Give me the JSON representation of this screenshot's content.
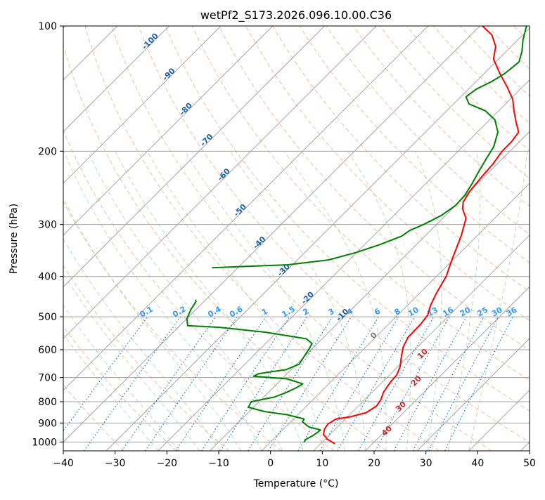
{
  "chart_data": {
    "type": "line",
    "title": "wetPf2_S173.2026.096.10.00.C36",
    "xlabel": "Temperature (°C)",
    "ylabel": "Pressure (hPa)",
    "xlim": [
      -40,
      50
    ],
    "ylim": [
      1050,
      100
    ],
    "y_scale": "log",
    "skew": "skew-T",
    "grid": true,
    "x_ticks": [
      -40,
      -30,
      -20,
      -10,
      0,
      10,
      20,
      30,
      40,
      50
    ],
    "y_ticks": [
      100,
      200,
      300,
      400,
      500,
      600,
      700,
      800,
      900,
      1000
    ],
    "x_tick_labels": [
      "−40",
      "−30",
      "−20",
      "−10",
      "0",
      "10",
      "20",
      "30",
      "40",
      "50"
    ],
    "y_tick_labels": [
      "100",
      "200",
      "300",
      "400",
      "500",
      "600",
      "700",
      "800",
      "900",
      "1000"
    ],
    "colors": {
      "temperature": "#ff0000",
      "dewpoint": "#008000",
      "isotherm": "#a0a0a0",
      "dry_adiabat": "#f4a582",
      "moist_adiabat": "#9fd39f",
      "mixing_ratio": "#1f77d4",
      "freezing_level_label": "#1a5fa8",
      "mixing_label": "#3399ff",
      "wetbulb_label": "#d62728",
      "isobar": "#a0a0a0"
    },
    "series": [
      {
        "key": "temperature",
        "points": [
          {
            "p": 1010,
            "t": 12.8
          },
          {
            "p": 985,
            "t": 10.5
          },
          {
            "p": 960,
            "t": 8.8
          },
          {
            "p": 930,
            "t": 7.9
          },
          {
            "p": 905,
            "t": 7.6
          },
          {
            "p": 880,
            "t": 8.2
          },
          {
            "p": 870,
            "t": 10.5
          },
          {
            "p": 850,
            "t": 12.8
          },
          {
            "p": 820,
            "t": 13.5
          },
          {
            "p": 790,
            "t": 13.1
          },
          {
            "p": 760,
            "t": 12.2
          },
          {
            "p": 720,
            "t": 11.6
          },
          {
            "p": 690,
            "t": 11.4
          },
          {
            "p": 660,
            "t": 10.5
          },
          {
            "p": 620,
            "t": 8.6
          },
          {
            "p": 590,
            "t": 7.2
          },
          {
            "p": 560,
            "t": 6.3
          },
          {
            "p": 520,
            "t": 6.2
          },
          {
            "p": 495,
            "t": 5.8
          },
          {
            "p": 470,
            "t": 4.5
          },
          {
            "p": 440,
            "t": 3.3
          },
          {
            "p": 400,
            "t": 1.9
          },
          {
            "p": 360,
            "t": -0.5
          },
          {
            "p": 320,
            "t": -3.0
          },
          {
            "p": 290,
            "t": -5.5
          },
          {
            "p": 275,
            "t": -8.0
          },
          {
            "p": 265,
            "t": -9.2
          },
          {
            "p": 250,
            "t": -10.0
          },
          {
            "p": 230,
            "t": -10.5
          },
          {
            "p": 215,
            "t": -10.8
          },
          {
            "p": 200,
            "t": -11.5
          },
          {
            "p": 190,
            "t": -11.5
          },
          {
            "p": 180,
            "t": -12.0
          },
          {
            "p": 170,
            "t": -14.5
          },
          {
            "p": 160,
            "t": -17.0
          },
          {
            "p": 150,
            "t": -19.5
          },
          {
            "p": 140,
            "t": -23.0
          },
          {
            "p": 130,
            "t": -27.0
          },
          {
            "p": 120,
            "t": -31.0
          },
          {
            "p": 112,
            "t": -33.0
          },
          {
            "p": 105,
            "t": -36.0
          },
          {
            "p": 100,
            "t": -39.5
          }
        ]
      },
      {
        "key": "dewpoint",
        "points": [
          {
            "p": 1000,
            "t": 6.5
          },
          {
            "p": 985,
            "t": 6.3
          },
          {
            "p": 970,
            "t": 6.8
          },
          {
            "p": 950,
            "t": 7.2
          },
          {
            "p": 935,
            "t": 7.3
          },
          {
            "p": 920,
            "t": 4.5
          },
          {
            "p": 895,
            "t": 2.3
          },
          {
            "p": 880,
            "t": 2.0
          },
          {
            "p": 860,
            "t": -2.0
          },
          {
            "p": 845,
            "t": -7.0
          },
          {
            "p": 825,
            "t": -11.0
          },
          {
            "p": 800,
            "t": -11.5
          },
          {
            "p": 780,
            "t": -8.0
          },
          {
            "p": 760,
            "t": -6.5
          },
          {
            "p": 740,
            "t": -5.5
          },
          {
            "p": 725,
            "t": -5.0
          },
          {
            "p": 705,
            "t": -9.0
          },
          {
            "p": 695,
            "t": -16.0
          },
          {
            "p": 685,
            "t": -15.5
          },
          {
            "p": 670,
            "t": -11.0
          },
          {
            "p": 650,
            "t": -9.5
          },
          {
            "p": 625,
            "t": -10.0
          },
          {
            "p": 600,
            "t": -10.5
          },
          {
            "p": 580,
            "t": -11.0
          },
          {
            "p": 565,
            "t": -13.0
          },
          {
            "p": 545,
            "t": -22.0
          },
          {
            "p": 530,
            "t": -32.0
          },
          {
            "p": 525,
            "t": -38.5
          },
          {
            "p": 505,
            "t": -40.0
          },
          {
            "p": 480,
            "t": -41.0
          },
          {
            "p": 460,
            "t": -41.5
          },
          {
            "p": 455,
            "t": -42.0
          }
        ]
      },
      {
        "key": "dewpoint_upper",
        "points": [
          {
            "p": 381,
            "t": -45.0
          },
          {
            "p": 379,
            "t": -40.0
          },
          {
            "p": 375,
            "t": -31.0
          },
          {
            "p": 365,
            "t": -24.0
          },
          {
            "p": 350,
            "t": -20.0
          },
          {
            "p": 335,
            "t": -17.0
          },
          {
            "p": 320,
            "t": -14.5
          },
          {
            "p": 310,
            "t": -14.0
          },
          {
            "p": 300,
            "t": -12.5
          },
          {
            "p": 285,
            "t": -10.8
          },
          {
            "p": 270,
            "t": -10.0
          },
          {
            "p": 255,
            "t": -10.2
          },
          {
            "p": 240,
            "t": -11.0
          },
          {
            "p": 225,
            "t": -12.0
          },
          {
            "p": 210,
            "t": -13.0
          },
          {
            "p": 195,
            "t": -14.0
          },
          {
            "p": 180,
            "t": -16.0
          },
          {
            "p": 168,
            "t": -19.0
          },
          {
            "p": 160,
            "t": -22.5
          },
          {
            "p": 154,
            "t": -27.0
          },
          {
            "p": 148,
            "t": -29.0
          },
          {
            "p": 142,
            "t": -28.5
          },
          {
            "p": 136,
            "t": -27.0
          },
          {
            "p": 130,
            "t": -26.0
          },
          {
            "p": 122,
            "t": -25.5
          },
          {
            "p": 115,
            "t": -27.0
          },
          {
            "p": 108,
            "t": -29.0
          },
          {
            "p": 100,
            "t": -31.0
          }
        ]
      }
    ],
    "freezing_labels": [
      "-100",
      "-90",
      "-80",
      "-70",
      "-60",
      "-50",
      "-40",
      "-30",
      "-20",
      "-10",
      "0"
    ],
    "mixing_ratio_labels": [
      "0.1",
      "0.2",
      "0.4",
      "0.6",
      "1",
      "1.5",
      "2",
      "3",
      "4",
      "6",
      "8",
      "10",
      "13",
      "16",
      "20",
      "25",
      "30",
      "36"
    ],
    "wetbulb_labels": [
      "10",
      "20",
      "30",
      "40"
    ]
  }
}
